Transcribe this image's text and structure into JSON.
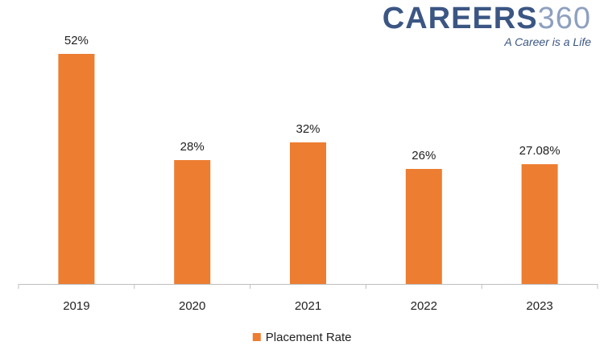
{
  "logo": {
    "brand_main": "CAREERS",
    "brand_number": "360",
    "tagline": "A Career is a Life"
  },
  "colors": {
    "bar": "#ED7D31",
    "axis": "#BFBFBF",
    "text": "#222222"
  },
  "chart_data": {
    "type": "bar",
    "categories": [
      "2019",
      "2020",
      "2021",
      "2022",
      "2023"
    ],
    "series": [
      {
        "name": "Placement Rate",
        "values": [
          52,
          28,
          32,
          26,
          27.08
        ],
        "labels": [
          "52%",
          "28%",
          "32%",
          "26%",
          "27.08%"
        ]
      }
    ],
    "title": "",
    "xlabel": "",
    "ylabel": "",
    "ylim": [
      0,
      52
    ],
    "grid": false,
    "legend": "bottom-center"
  }
}
